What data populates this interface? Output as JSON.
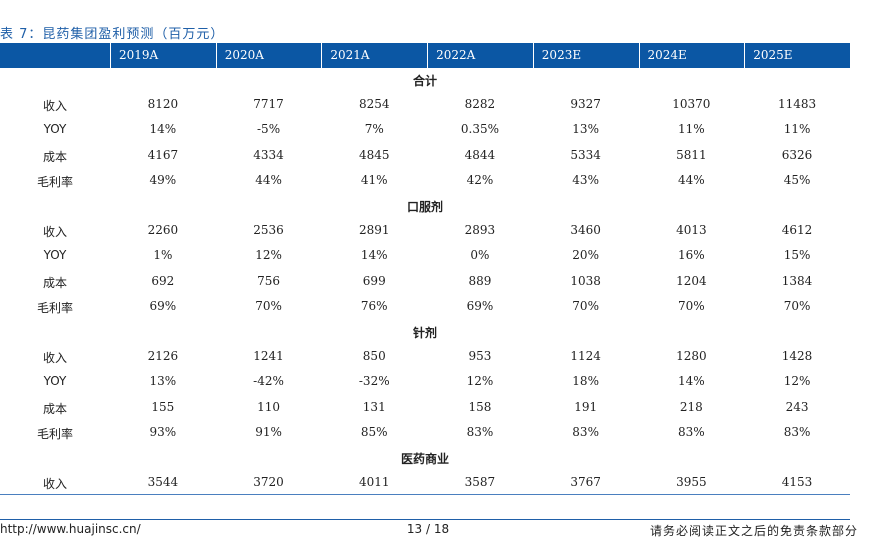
{
  "table_title": "表 7：昆药集团盈利预测（百万元）",
  "columns": [
    "2019A",
    "2020A",
    "2021A",
    "2022A",
    "2023E",
    "2024E",
    "2025E"
  ],
  "sections": [
    {
      "name": "合计",
      "rows": [
        {
          "label": "收入",
          "values": [
            "8120",
            "7717",
            "8254",
            "8282",
            "9327",
            "10370",
            "11483"
          ]
        },
        {
          "label": "YOY",
          "values": [
            "14%",
            "-5%",
            "7%",
            "0.35%",
            "13%",
            "11%",
            "11%"
          ]
        },
        {
          "label": "成本",
          "values": [
            "4167",
            "4334",
            "4845",
            "4844",
            "5334",
            "5811",
            "6326"
          ]
        },
        {
          "label": "毛利率",
          "values": [
            "49%",
            "44%",
            "41%",
            "42%",
            "43%",
            "44%",
            "45%"
          ]
        }
      ]
    },
    {
      "name": "口服剂",
      "rows": [
        {
          "label": "收入",
          "values": [
            "2260",
            "2536",
            "2891",
            "2893",
            "3460",
            "4013",
            "4612"
          ]
        },
        {
          "label": "YOY",
          "values": [
            "1%",
            "12%",
            "14%",
            "0%",
            "20%",
            "16%",
            "15%"
          ]
        },
        {
          "label": "成本",
          "values": [
            "692",
            "756",
            "699",
            "889",
            "1038",
            "1204",
            "1384"
          ]
        },
        {
          "label": "毛利率",
          "values": [
            "69%",
            "70%",
            "76%",
            "69%",
            "70%",
            "70%",
            "70%"
          ]
        }
      ]
    },
    {
      "name": "针剂",
      "rows": [
        {
          "label": "收入",
          "values": [
            "2126",
            "1241",
            "850",
            "953",
            "1124",
            "1280",
            "1428"
          ]
        },
        {
          "label": "YOY",
          "values": [
            "13%",
            "-42%",
            "-32%",
            "12%",
            "18%",
            "14%",
            "12%"
          ]
        },
        {
          "label": "成本",
          "values": [
            "155",
            "110",
            "131",
            "158",
            "191",
            "218",
            "243"
          ]
        },
        {
          "label": "毛利率",
          "values": [
            "93%",
            "91%",
            "85%",
            "83%",
            "83%",
            "83%",
            "83%"
          ]
        }
      ]
    },
    {
      "name": "医药商业",
      "rows": [
        {
          "label": "收入",
          "values": [
            "3544",
            "3720",
            "4011",
            "3587",
            "3767",
            "3955",
            "4153"
          ]
        }
      ]
    }
  ],
  "footer": {
    "url": "http://www.huajinsc.cn/",
    "page": "13 / 18",
    "disclaimer": "请务必阅读正文之后的免责条款部分"
  }
}
